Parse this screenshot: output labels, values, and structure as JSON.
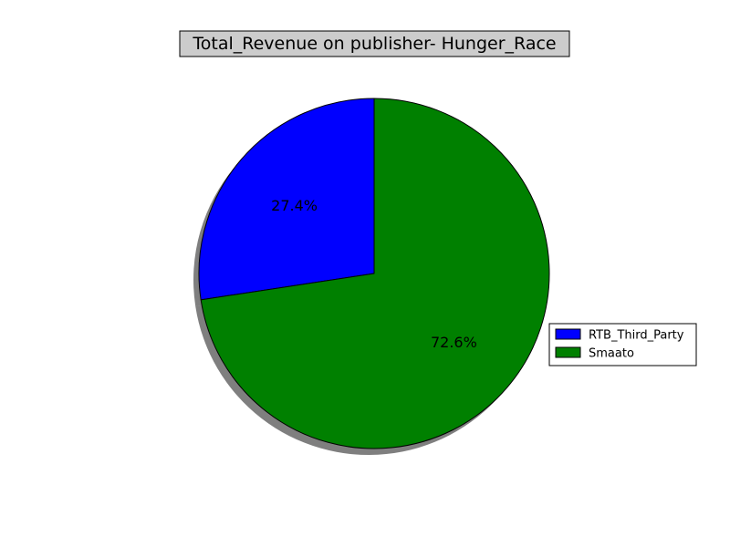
{
  "chart_data": {
    "type": "pie",
    "title": "Total_Revenue on publisher- Hunger_Race",
    "labels": [
      "RTB_Third_Party",
      "Smaato"
    ],
    "values": [
      27.4,
      72.6
    ],
    "pct_labels": [
      "27.4%",
      "72.6%"
    ],
    "colors": [
      "#0000ff",
      "#008000"
    ],
    "shadow": true,
    "start_angle_deg": 90,
    "direction": "counterclockwise",
    "legend_position": "right"
  }
}
